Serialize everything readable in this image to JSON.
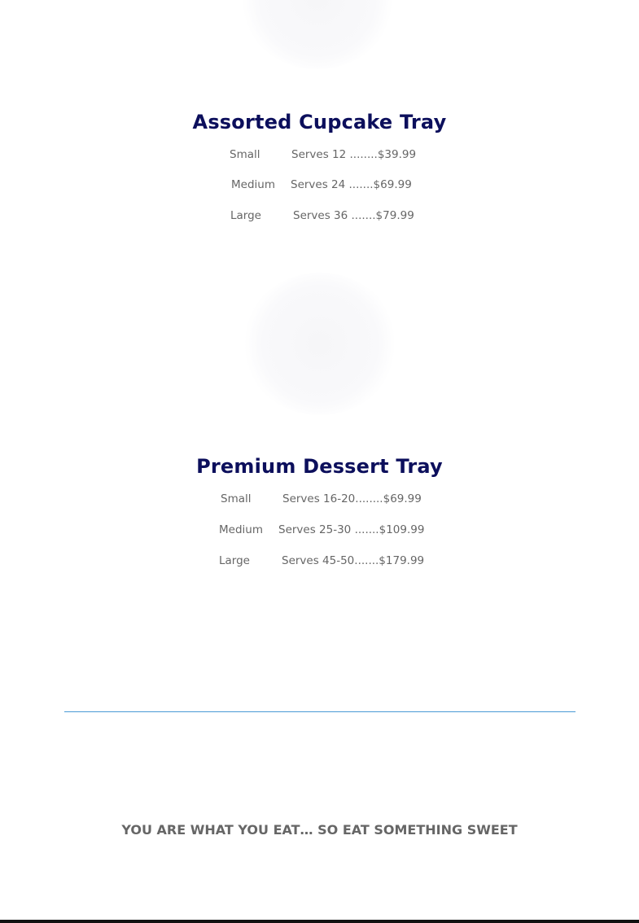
{
  "products": [
    {
      "title": "Assorted Cupcake Tray",
      "image": "cupcake-tray-image",
      "rows": [
        {
          "size": "Small",
          "serves": "Serves 12 ........$39.99"
        },
        {
          "size": "Medium",
          "serves": "Serves 24 .......$69.99"
        },
        {
          "size": "Large",
          "serves": "Serves 36 .......$79.99"
        }
      ]
    },
    {
      "title": "Premium Dessert Tray",
      "image": "dessert-tray-image",
      "rows": [
        {
          "size": "Small",
          "serves": "Serves 16-20........$69.99"
        },
        {
          "size": "Medium",
          "serves": "Serves 25-30 .......$109.99"
        },
        {
          "size": "Large",
          "serves": "Serves 45-50.......$179.99"
        }
      ]
    }
  ],
  "tagline": "YOU ARE WHAT YOU EAT… SO EAT SOMETHING SWEET",
  "colors": {
    "title": "#0c0f5c",
    "text": "#666666",
    "divider": "#4a9ad6"
  }
}
